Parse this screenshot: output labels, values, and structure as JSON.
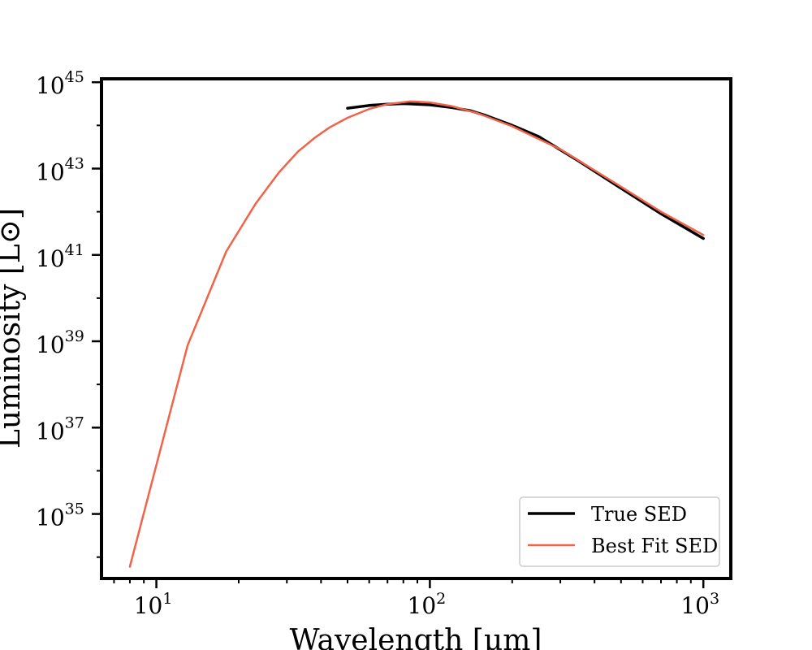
{
  "chart_data": {
    "type": "line",
    "title": "",
    "xlabel": "Wavelength [μm]",
    "ylabel": "Luminosity [L⊙]",
    "xscale": "log",
    "yscale": "log",
    "xlim": [
      6.3,
      1260
    ],
    "ylim": [
      3.2e+33,
      1.2e+45
    ],
    "x_ticks": [
      10,
      100,
      1000
    ],
    "x_tick_labels": [
      {
        "base": "10",
        "exp": "1"
      },
      {
        "base": "10",
        "exp": "2"
      },
      {
        "base": "10",
        "exp": "3"
      }
    ],
    "y_ticks": [
      1e+35,
      1e+37,
      1e+39,
      1e+41,
      1e+43,
      1e+45
    ],
    "y_tick_labels": [
      {
        "base": "10",
        "exp": "35"
      },
      {
        "base": "10",
        "exp": "37"
      },
      {
        "base": "10",
        "exp": "39"
      },
      {
        "base": "10",
        "exp": "41"
      },
      {
        "base": "10",
        "exp": "43"
      },
      {
        "base": "10",
        "exp": "45"
      }
    ],
    "grid": false,
    "legend_position": "lower-right",
    "series": [
      {
        "name": "True SED",
        "color": "#000000",
        "x": [
          50,
          60,
          70,
          80,
          90,
          100,
          120,
          140,
          160,
          200,
          250,
          350,
          500,
          700,
          1000
        ],
        "y": [
          2.5e+44,
          2.9e+44,
          3.1e+44,
          3.2e+44,
          3.1e+44,
          3e+44,
          2.6e+44,
          2.2e+44,
          1.7e+44,
          1e+44,
          5.5e+43,
          1.5e+43,
          3.5e+42,
          9e+41,
          2.4e+41
        ]
      },
      {
        "name": "Best Fit SED",
        "color": "#f06449",
        "x": [
          8,
          13,
          18,
          23,
          28,
          33,
          38,
          43,
          50,
          60,
          70,
          85,
          100,
          120,
          150,
          200,
          300,
          500,
          700,
          1000
        ],
        "y": [
          6e+33,
          8e+38,
          1.2e+41,
          1.5e+42,
          8e+42,
          2.5e+43,
          5.2e+43,
          9e+43,
          1.5e+44,
          2.4e+44,
          3.1e+44,
          3.6e+44,
          3.4e+44,
          2.8e+44,
          1.9e+44,
          9.5e+43,
          2.8e+43,
          3.8e+42,
          1e+42,
          2.9e+41
        ]
      }
    ]
  }
}
